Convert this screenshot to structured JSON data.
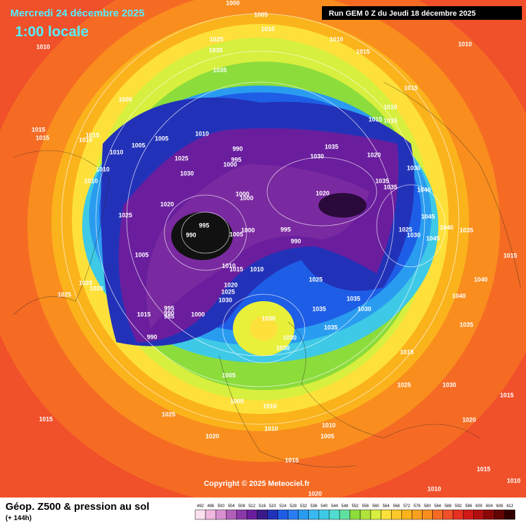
{
  "header": {
    "date": "Mercredi 24 décembre 2025",
    "time": "1:00 locale",
    "run": "Run GEM 0 Z du Jeudi 18 décembre 2025"
  },
  "map": {
    "pressure_labels": [
      1000,
      1005,
      1010,
      1010,
      1025,
      1030,
      1035,
      1010,
      1015,
      1010,
      1015,
      1005,
      1010,
      1015,
      1015,
      1015,
      1015,
      1015,
      1010,
      1005,
      1010,
      1005,
      1010,
      990,
      995,
      1000,
      1025,
      1030,
      1035,
      1020,
      1030,
      1010,
      1010,
      1030,
      1035,
      1035,
      1040,
      1020,
      1000,
      1000,
      1020,
      1025,
      995,
      990,
      1005,
      1000,
      995,
      990,
      1045,
      1040,
      1035,
      1025,
      1030,
      1045,
      1005,
      1015,
      1010,
      1015,
      1010,
      1025,
      1040,
      1020,
      1020,
      1025,
      1020,
      1025,
      1030,
      1035,
      1040,
      1030,
      1035,
      995,
      990,
      985,
      1000,
      1015,
      1030,
      1035,
      1035,
      990,
      1030,
      1030,
      1015,
      1005,
      1025,
      1030,
      1005,
      1010,
      1015,
      1015,
      1025,
      1020,
      1010,
      1010,
      1005,
      1020,
      1015,
      1015,
      1010,
      1010,
      1020
    ],
    "copyright": "Copyright © 2025 Meteociel.fr"
  },
  "footer": {
    "title": "Géop. Z500 & pression au sol",
    "lead": "(+ 144h)",
    "scale": [
      492,
      496,
      500,
      504,
      508,
      512,
      516,
      520,
      524,
      528,
      532,
      536,
      540,
      544,
      548,
      552,
      556,
      560,
      564,
      568,
      572,
      576,
      580,
      584,
      588,
      592,
      596,
      600,
      604,
      608,
      612
    ]
  }
}
